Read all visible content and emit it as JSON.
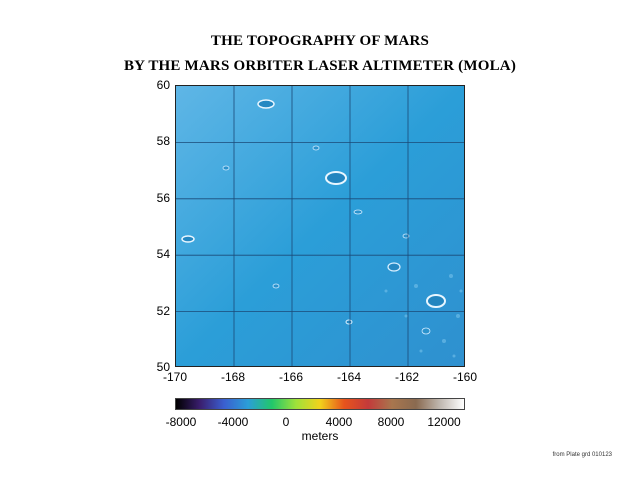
{
  "title_line1": "THE TOPOGRAPHY OF MARS",
  "title_line2": "BY THE MARS ORBITER LASER ALTIMETER (MOLA)",
  "map": {
    "lat_range": [
      50,
      60
    ],
    "lon_range": [
      -170,
      -160
    ],
    "lat_ticks": [
      "60",
      "58",
      "56",
      "54",
      "52",
      "50"
    ],
    "lon_ticks": [
      "-170",
      "-168",
      "-166",
      "-164",
      "-162",
      "-160"
    ],
    "base_color": "#2b9ed8",
    "grid_color": "#1b4a78"
  },
  "colorbar": {
    "ticks": [
      "-8000",
      "-4000",
      "0",
      "4000",
      "8000",
      "12000"
    ],
    "label": "meters",
    "range": [
      -8000,
      14000
    ],
    "colors": [
      "#000000",
      "#3a1e6e",
      "#3a5fd0",
      "#2b9ed8",
      "#22c76a",
      "#9fe23a",
      "#f2d21c",
      "#e8541c",
      "#c43a3a",
      "#a8764e",
      "#8a6a50",
      "#c0b8b0",
      "#ffffff"
    ]
  },
  "credit": "from Plate grd 010123"
}
